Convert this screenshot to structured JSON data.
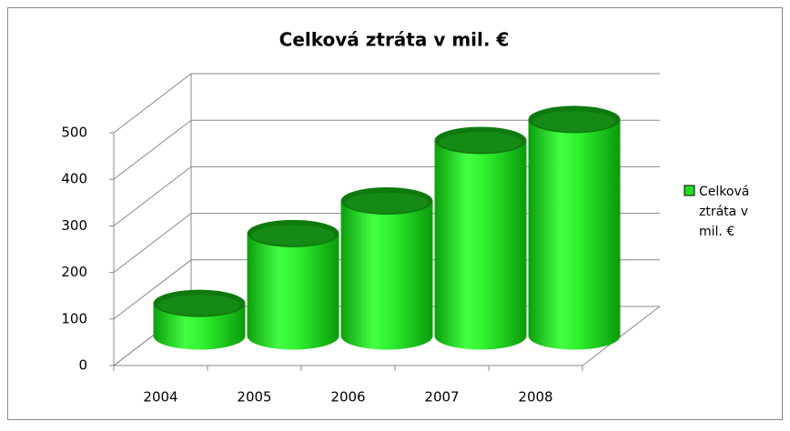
{
  "chart_data": {
    "type": "bar3d",
    "title": "Celková ztráta v mil. €",
    "categories": [
      "2004",
      "2005",
      "2006",
      "2007",
      "2008"
    ],
    "series": [
      {
        "name": "Celková ztráta v mil. €",
        "color": "#22dd22",
        "values": [
          70,
          220,
          290,
          420,
          465
        ]
      }
    ],
    "ylim": [
      0,
      500
    ],
    "yticks": [
      0,
      100,
      200,
      300,
      400,
      500
    ],
    "grid": true,
    "legend": "right"
  }
}
